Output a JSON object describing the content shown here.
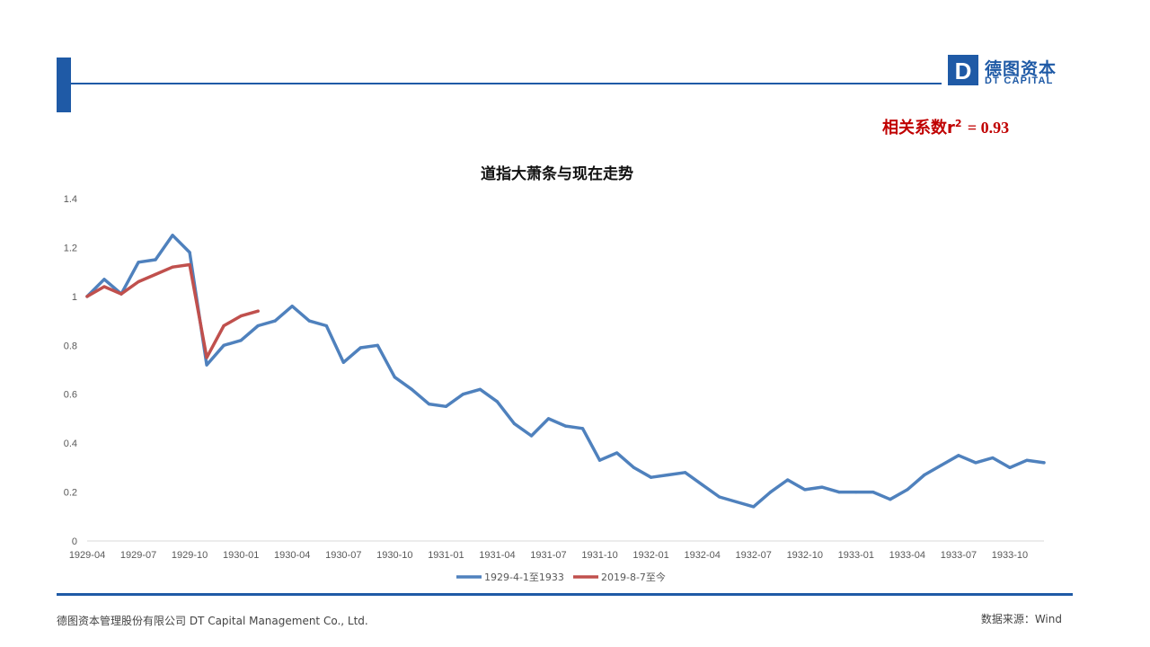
{
  "brand": {
    "logo_letter": "D",
    "name_cn": "德图资本",
    "name_en": "DT CAPITAL"
  },
  "annotation": {
    "label": "相关系数r",
    "superscript": "2",
    "value_text": "= 0.93"
  },
  "footer": {
    "company": "德图资本管理股份有限公司  DT Capital  Management  Co., Ltd.",
    "source": "数据来源：Wind"
  },
  "colors": {
    "brand_blue": "#1f5aa6",
    "series_1929": "#4f81bd",
    "series_2019": "#c0504d",
    "annotation_red": "#c00000"
  },
  "chart_data": {
    "type": "line",
    "title": "道指大萧条与现在走势",
    "xlabel": "",
    "ylabel": "",
    "ylim": [
      0,
      1.4
    ],
    "yticks": [
      "0",
      "0.2",
      "0.4",
      "0.6",
      "0.8",
      "1",
      "1.2",
      "1.4"
    ],
    "xticks": [
      "1929-04",
      "1929-07",
      "1929-10",
      "1930-01",
      "1930-04",
      "1930-07",
      "1930-10",
      "1931-01",
      "1931-04",
      "1931-07",
      "1931-10",
      "1932-01",
      "1932-04",
      "1932-07",
      "1932-10",
      "1933-01",
      "1933-04",
      "1933-07",
      "1933-10"
    ],
    "x_range": [
      "1929-04",
      "1933-12"
    ],
    "grid": false,
    "legend": "bottom",
    "series": [
      {
        "name": "1929-4-1至1933",
        "x": [
          "1929-04",
          "1929-05",
          "1929-06",
          "1929-07",
          "1929-08",
          "1929-09",
          "1929-10",
          "1929-11",
          "1929-12",
          "1930-01",
          "1930-02",
          "1930-03",
          "1930-04",
          "1930-05",
          "1930-06",
          "1930-07",
          "1930-08",
          "1930-09",
          "1930-10",
          "1930-11",
          "1930-12",
          "1931-01",
          "1931-02",
          "1931-03",
          "1931-04",
          "1931-05",
          "1931-06",
          "1931-07",
          "1931-08",
          "1931-09",
          "1931-10",
          "1931-11",
          "1931-12",
          "1932-01",
          "1932-02",
          "1932-03",
          "1932-04",
          "1932-05",
          "1932-06",
          "1932-07",
          "1932-08",
          "1932-09",
          "1932-10",
          "1932-11",
          "1932-12",
          "1933-01",
          "1933-02",
          "1933-03",
          "1933-04",
          "1933-05",
          "1933-06",
          "1933-07",
          "1933-08",
          "1933-09",
          "1933-10",
          "1933-11",
          "1933-12"
        ],
        "values": [
          1.0,
          1.07,
          1.01,
          1.14,
          1.15,
          1.25,
          1.18,
          0.72,
          0.8,
          0.82,
          0.88,
          0.9,
          0.96,
          0.9,
          0.88,
          0.73,
          0.79,
          0.8,
          0.67,
          0.62,
          0.56,
          0.55,
          0.6,
          0.62,
          0.57,
          0.48,
          0.43,
          0.5,
          0.47,
          0.46,
          0.33,
          0.36,
          0.3,
          0.26,
          0.27,
          0.28,
          0.23,
          0.18,
          0.16,
          0.14,
          0.2,
          0.25,
          0.21,
          0.22,
          0.2,
          0.2,
          0.2,
          0.17,
          0.21,
          0.27,
          0.31,
          0.35,
          0.32,
          0.34,
          0.3,
          0.33,
          0.32
        ]
      },
      {
        "name": "2019-8-7至今",
        "x": [
          "1929-04",
          "1929-05",
          "1929-06",
          "1929-07",
          "1929-08",
          "1929-09",
          "1929-10",
          "1929-11",
          "1929-12",
          "1930-01",
          "1930-02"
        ],
        "values": [
          1.0,
          1.04,
          1.01,
          1.06,
          1.09,
          1.12,
          1.13,
          0.75,
          0.88,
          0.92,
          0.94
        ]
      }
    ]
  }
}
